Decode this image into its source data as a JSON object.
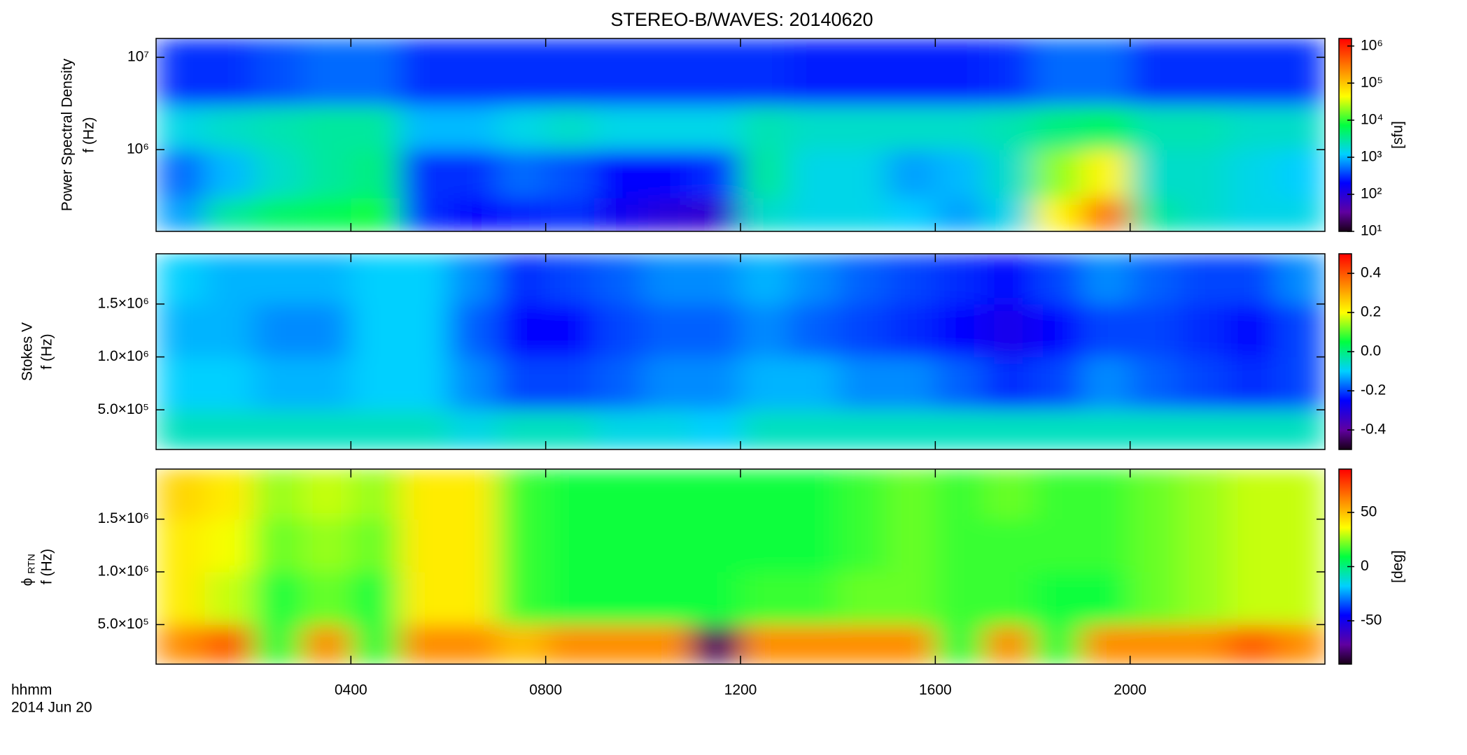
{
  "chart_data": [
    {
      "type": "heatmap",
      "title": "STEREO-B/WAVES: 20140620",
      "ylabel": "Power Spectral Density",
      "ylabel2": "f (Hz)",
      "zlabel": "[sfu]",
      "colormap": "rainbow",
      "ylog": true,
      "zlog": true,
      "xlim": [
        0,
        24
      ],
      "ylim": [
        130000,
        16000000
      ],
      "zlim": [
        10,
        1600000
      ],
      "yticks": [
        {
          "value": 1000000,
          "label": "10⁶"
        },
        {
          "value": 10000000,
          "label": "10⁷"
        }
      ],
      "zticks": [
        {
          "value": 10,
          "label": "10¹"
        },
        {
          "value": 100,
          "label": "10²"
        },
        {
          "value": 1000,
          "label": "10³"
        },
        {
          "value": 10000,
          "label": "10⁴"
        },
        {
          "value": 100000,
          "label": "10⁵"
        },
        {
          "value": 1000000,
          "label": "10⁶"
        }
      ],
      "xbins": [
        0,
        1,
        2,
        3,
        4,
        5,
        6,
        7,
        8,
        9,
        10,
        11,
        12,
        13,
        14,
        15,
        16,
        17,
        18,
        19,
        20,
        21,
        22,
        23,
        24
      ],
      "ybins": [
        130000,
        300000,
        1000000,
        3000000,
        16000000
      ],
      "z": [
        [
          800,
          3000,
          5000,
          6000,
          8000,
          300,
          200,
          250,
          300,
          150,
          100,
          80,
          2000,
          1500,
          1500,
          1200,
          800,
          1500,
          50000,
          300000,
          3000,
          2000,
          1500,
          1500
        ],
        [
          500,
          1000,
          2000,
          3000,
          4000,
          300,
          300,
          500,
          400,
          200,
          200,
          300,
          3000,
          1500,
          1500,
          800,
          1000,
          2000,
          20000,
          50000,
          2000,
          2000,
          1500,
          1200
        ],
        [
          1500,
          2000,
          2500,
          3000,
          3000,
          1000,
          1000,
          1500,
          2000,
          1500,
          1500,
          1500,
          2500,
          2000,
          2000,
          2000,
          2000,
          2500,
          4000,
          5000,
          2500,
          2500,
          2000,
          2000
        ],
        [
          300,
          300,
          400,
          500,
          500,
          300,
          300,
          300,
          300,
          300,
          300,
          300,
          300,
          250,
          250,
          250,
          250,
          300,
          500,
          500,
          300,
          300,
          300,
          300
        ]
      ]
    },
    {
      "type": "heatmap",
      "ylabel": "Stokes V",
      "ylabel2": "f (Hz)",
      "colormap": "rainbow",
      "xlim": [
        0,
        24
      ],
      "ylim": [
        125000,
        1975000
      ],
      "zlim": [
        -0.5,
        0.5
      ],
      "yticks": [
        {
          "value": 500000,
          "label": "5.0×10⁵"
        },
        {
          "value": 1000000,
          "label": "1.0×10⁶"
        },
        {
          "value": 1500000,
          "label": "1.5×10⁶"
        }
      ],
      "zticks": [
        -0.4,
        -0.2,
        {
          "value": 0,
          "label": "0.0"
        },
        0.2,
        0.4
      ],
      "xbins": [
        0,
        1,
        2,
        3,
        4,
        5,
        6,
        7,
        8,
        9,
        10,
        11,
        12,
        13,
        14,
        15,
        16,
        17,
        18,
        19,
        20,
        21,
        22,
        23,
        24
      ],
      "ybins": [
        125000,
        500000,
        1000000,
        1500000,
        1975000
      ],
      "z": [
        [
          -0.05,
          -0.05,
          -0.05,
          -0.05,
          -0.05,
          -0.05,
          -0.08,
          -0.05,
          -0.05,
          -0.08,
          -0.08,
          -0.1,
          -0.05,
          -0.05,
          -0.05,
          -0.05,
          -0.05,
          -0.05,
          -0.05,
          -0.05,
          -0.05,
          -0.05,
          -0.05,
          -0.05
        ],
        [
          -0.1,
          -0.1,
          -0.12,
          -0.12,
          -0.1,
          -0.1,
          -0.15,
          -0.2,
          -0.2,
          -0.18,
          -0.15,
          -0.15,
          -0.12,
          -0.12,
          -0.15,
          -0.15,
          -0.18,
          -0.22,
          -0.2,
          -0.15,
          -0.18,
          -0.2,
          -0.22,
          -0.2
        ],
        [
          -0.12,
          -0.12,
          -0.15,
          -0.15,
          -0.1,
          -0.1,
          -0.18,
          -0.25,
          -0.25,
          -0.2,
          -0.18,
          -0.18,
          -0.15,
          -0.18,
          -0.2,
          -0.22,
          -0.25,
          -0.28,
          -0.25,
          -0.2,
          -0.2,
          -0.22,
          -0.25,
          -0.2
        ],
        [
          -0.1,
          -0.12,
          -0.12,
          -0.12,
          -0.1,
          -0.1,
          -0.15,
          -0.22,
          -0.2,
          -0.18,
          -0.15,
          -0.15,
          -0.12,
          -0.15,
          -0.18,
          -0.2,
          -0.22,
          -0.25,
          -0.2,
          -0.15,
          -0.18,
          -0.2,
          -0.2,
          -0.15
        ]
      ]
    },
    {
      "type": "heatmap",
      "ylabel_symbol": "ϕ",
      "ylabel_subscript": "RTN",
      "ylabel2": "f (Hz)",
      "zlabel": "[deg]",
      "colormap": "rainbow",
      "xlim": [
        0,
        24
      ],
      "ylim": [
        125000,
        1975000
      ],
      "zlim": [
        -90,
        90
      ],
      "yticks": [
        {
          "value": 500000,
          "label": "5.0×10⁵"
        },
        {
          "value": 1000000,
          "label": "1.0×10⁶"
        },
        {
          "value": 1500000,
          "label": "1.5×10⁶"
        }
      ],
      "zticks": [
        -50,
        0,
        50
      ],
      "xticks": [
        {
          "value": 4,
          "label": "0400"
        },
        {
          "value": 8,
          "label": "0800"
        },
        {
          "value": 12,
          "label": "1200"
        },
        {
          "value": 16,
          "label": "1600"
        },
        {
          "value": 20,
          "label": "2000"
        }
      ],
      "xlabel": "hhmm",
      "date": "2014 Jun 20",
      "xbins": [
        0,
        1,
        2,
        3,
        4,
        5,
        6,
        7,
        8,
        9,
        10,
        11,
        12,
        13,
        14,
        15,
        16,
        17,
        18,
        19,
        20,
        21,
        22,
        23,
        24
      ],
      "ybins": [
        125000,
        500000,
        1000000,
        1500000,
        1975000
      ],
      "z": [
        [
          60,
          70,
          10,
          60,
          10,
          60,
          60,
          50,
          60,
          60,
          60,
          -80,
          60,
          60,
          60,
          60,
          10,
          60,
          10,
          60,
          60,
          60,
          70,
          60
        ],
        [
          40,
          30,
          10,
          20,
          10,
          40,
          40,
          15,
          10,
          10,
          10,
          10,
          15,
          15,
          20,
          20,
          15,
          15,
          10,
          10,
          20,
          25,
          30,
          30
        ],
        [
          40,
          35,
          20,
          25,
          20,
          40,
          40,
          15,
          10,
          10,
          10,
          10,
          10,
          10,
          15,
          20,
          15,
          15,
          15,
          15,
          20,
          25,
          30,
          30
        ],
        [
          45,
          40,
          25,
          30,
          25,
          40,
          40,
          15,
          10,
          10,
          10,
          10,
          10,
          10,
          15,
          20,
          15,
          20,
          15,
          15,
          20,
          25,
          30,
          30
        ]
      ]
    }
  ]
}
